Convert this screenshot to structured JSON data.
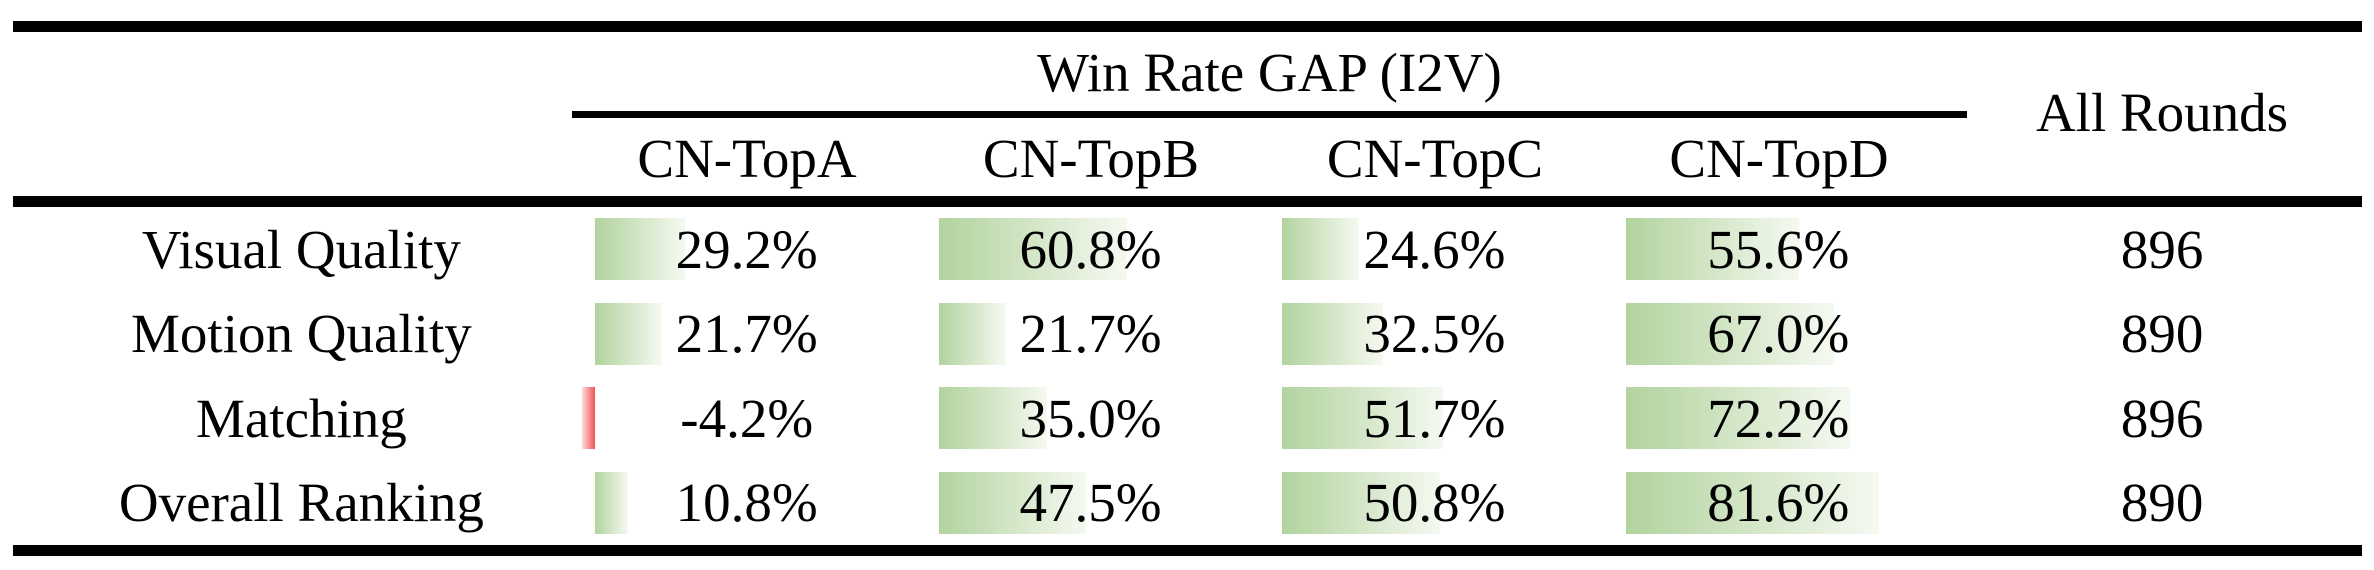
{
  "table": {
    "group_header": "Win Rate GAP (I2V)",
    "all_rounds_header": "All Rounds",
    "columns": [
      "CN-TopA",
      "CN-TopB",
      "CN-TopC",
      "CN-TopD"
    ],
    "rows": [
      {
        "label": "Visual Quality",
        "cells": [
          {
            "text": "29.2%",
            "value": 29.2
          },
          {
            "text": "60.8%",
            "value": 60.8
          },
          {
            "text": "24.6%",
            "value": 24.6
          },
          {
            "text": "55.6%",
            "value": 55.6
          }
        ],
        "all_rounds": "896"
      },
      {
        "label": "Motion Quality",
        "cells": [
          {
            "text": "21.7%",
            "value": 21.7
          },
          {
            "text": "21.7%",
            "value": 21.7
          },
          {
            "text": "32.5%",
            "value": 32.5
          },
          {
            "text": "67.0%",
            "value": 67.0
          }
        ],
        "all_rounds": "890"
      },
      {
        "label": "Matching",
        "cells": [
          {
            "text": "-4.2%",
            "value": -4.2
          },
          {
            "text": "35.0%",
            "value": 35.0
          },
          {
            "text": "51.7%",
            "value": 51.7
          },
          {
            "text": "72.2%",
            "value": 72.2
          }
        ],
        "all_rounds": "896"
      },
      {
        "label": "Overall Ranking",
        "cells": [
          {
            "text": "10.8%",
            "value": 10.8
          },
          {
            "text": "47.5%",
            "value": 47.5
          },
          {
            "text": "50.8%",
            "value": 50.8
          },
          {
            "text": "81.6%",
            "value": 81.6
          }
        ],
        "all_rounds": "890"
      }
    ]
  },
  "colors": {
    "rule": "#000000",
    "bar_positive_start": "#b2d39e",
    "bar_positive_end": "#f5f9f1",
    "bar_negative_start": "#ee5454",
    "bar_negative_end": "#fcdcdc"
  }
}
